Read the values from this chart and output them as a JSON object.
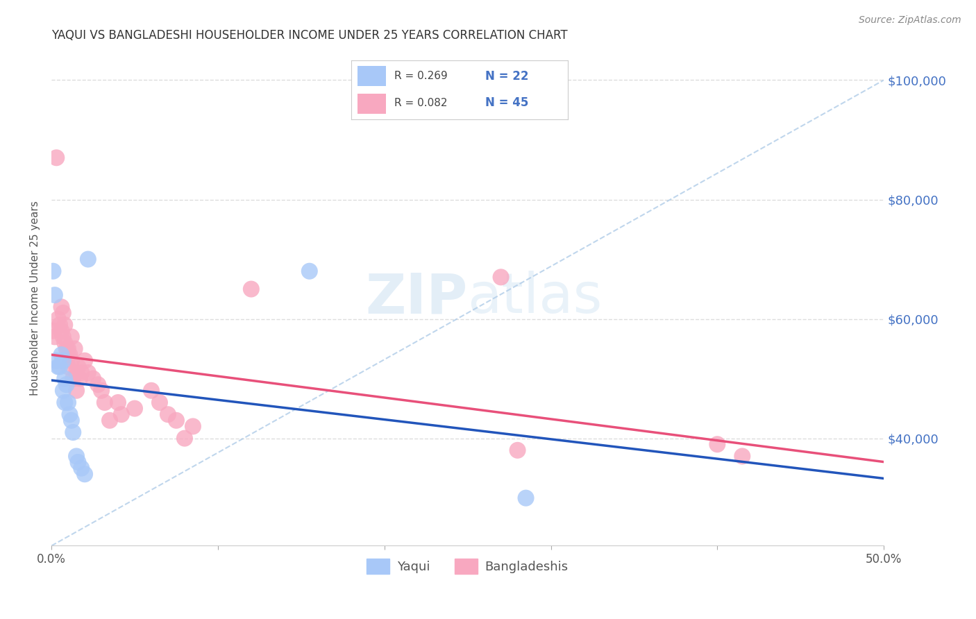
{
  "title": "YAQUI VS BANGLADESHI HOUSEHOLDER INCOME UNDER 25 YEARS CORRELATION CHART",
  "source": "Source: ZipAtlas.com",
  "ylabel": "Householder Income Under 25 years",
  "legend_yaqui": "Yaqui",
  "legend_bangladeshi": "Bangladeshis",
  "legend_r_yaqui": "R = 0.269",
  "legend_n_yaqui": "N = 22",
  "legend_r_bangladeshi": "R = 0.082",
  "legend_n_bangladeshi": "N = 45",
  "yaqui_color": "#a8c8f8",
  "bangladeshi_color": "#f8a8c0",
  "yaqui_line_color": "#2255bb",
  "bangladeshi_line_color": "#e8507a",
  "dashed_line_color": "#b0cce8",
  "watermark_zip": "ZIP",
  "watermark_atlas": "atlas",
  "xlim": [
    0.0,
    0.5
  ],
  "ylim": [
    22000,
    105000
  ],
  "background_color": "#ffffff",
  "grid_color": "#dddddd",
  "yaqui_x": [
    0.001,
    0.002,
    0.003,
    0.004,
    0.005,
    0.006,
    0.007,
    0.007,
    0.008,
    0.008,
    0.009,
    0.01,
    0.011,
    0.012,
    0.013,
    0.015,
    0.016,
    0.018,
    0.02,
    0.022,
    0.155,
    0.285
  ],
  "yaqui_y": [
    68000,
    64000,
    53000,
    52000,
    52000,
    54000,
    53000,
    48000,
    50000,
    46000,
    49000,
    46000,
    44000,
    43000,
    41000,
    37000,
    36000,
    35000,
    34000,
    70000,
    68000,
    30000
  ],
  "bangladeshi_x": [
    0.001,
    0.002,
    0.003,
    0.004,
    0.005,
    0.006,
    0.006,
    0.007,
    0.007,
    0.008,
    0.008,
    0.009,
    0.01,
    0.01,
    0.011,
    0.012,
    0.012,
    0.013,
    0.014,
    0.015,
    0.015,
    0.016,
    0.017,
    0.018,
    0.02,
    0.022,
    0.025,
    0.028,
    0.03,
    0.032,
    0.035,
    0.04,
    0.042,
    0.05,
    0.06,
    0.065,
    0.07,
    0.075,
    0.08,
    0.085,
    0.27,
    0.28,
    0.4,
    0.415,
    0.12
  ],
  "bangladeshi_y": [
    58000,
    57000,
    87000,
    60000,
    59000,
    62000,
    58000,
    61000,
    57000,
    59000,
    56000,
    55000,
    55000,
    52000,
    54000,
    57000,
    53000,
    50000,
    55000,
    51000,
    48000,
    52000,
    50000,
    51000,
    53000,
    51000,
    50000,
    49000,
    48000,
    46000,
    43000,
    46000,
    44000,
    45000,
    48000,
    46000,
    44000,
    43000,
    40000,
    42000,
    67000,
    38000,
    39000,
    37000,
    65000
  ]
}
